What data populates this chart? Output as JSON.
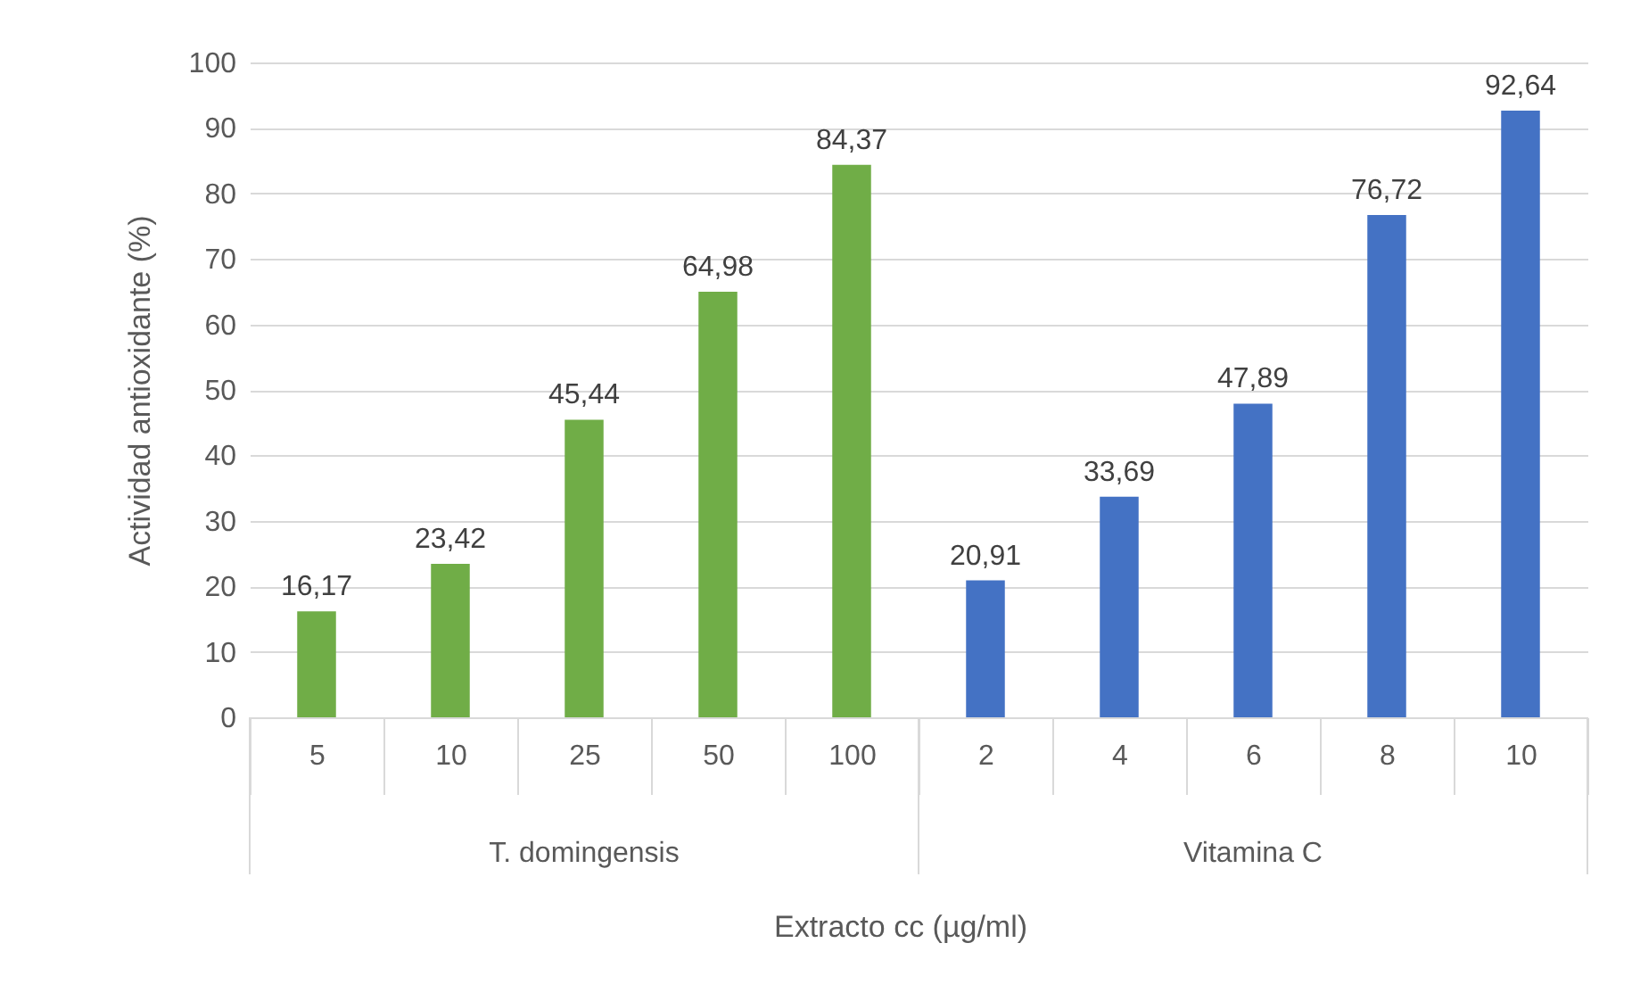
{
  "chart_data": {
    "type": "bar",
    "xlabel": "Extracto cc (µg/ml)",
    "ylabel": "Actividad antioxidante (%)",
    "categories": [
      "5",
      "10",
      "25",
      "50",
      "100",
      "2",
      "4",
      "6",
      "8",
      "10"
    ],
    "series": [
      {
        "color": "#70ad47",
        "values": [
          16.17,
          23.42,
          45.44,
          64.98,
          84.37,
          null,
          null,
          null,
          null,
          null
        ],
        "value_labels": [
          "16,17",
          "23,42",
          "45,44",
          "64,98",
          "84,37",
          null,
          null,
          null,
          null,
          null
        ]
      },
      {
        "color": "#4472c4",
        "values": [
          null,
          null,
          null,
          null,
          null,
          20.91,
          33.69,
          47.89,
          76.72,
          92.64
        ],
        "value_labels": [
          null,
          null,
          null,
          null,
          null,
          "20,91",
          "33,69",
          "47,89",
          "76,72",
          "92,64"
        ]
      }
    ],
    "annotations": [
      "T. domingensis",
      "Vitamina C"
    ],
    "ylim": [
      0,
      100
    ],
    "yticks": [
      0,
      10,
      20,
      30,
      40,
      50,
      60,
      70,
      80,
      90,
      100
    ],
    "grid": "y"
  }
}
